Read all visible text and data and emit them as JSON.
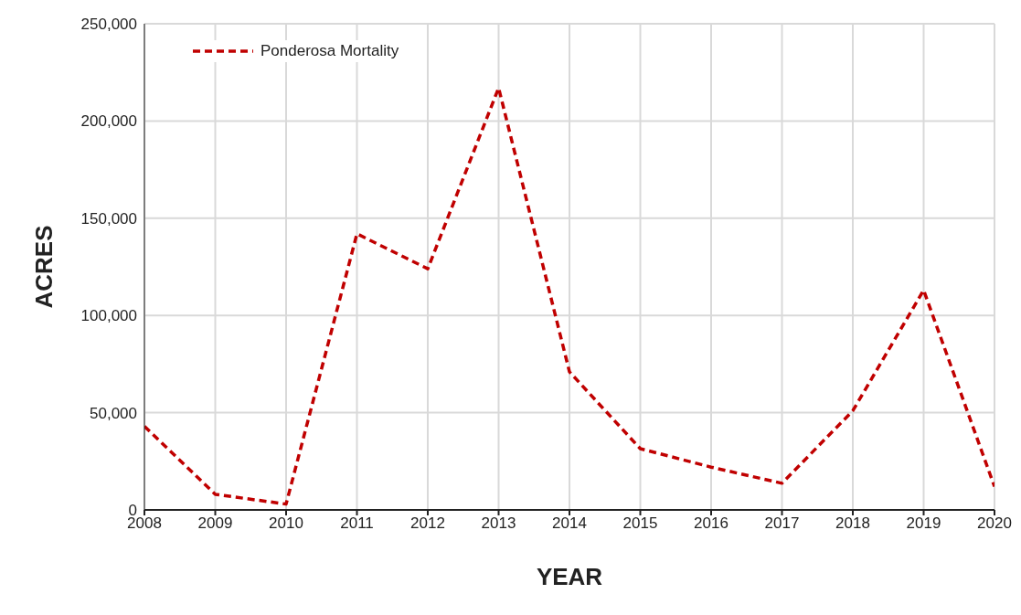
{
  "chart_data": {
    "type": "line",
    "xlabel": "YEAR",
    "ylabel": "ACRES",
    "x": [
      2008,
      2009,
      2010,
      2011,
      2012,
      2013,
      2014,
      2015,
      2016,
      2017,
      2018,
      2019,
      2020
    ],
    "series": [
      {
        "name": "Ponderosa Mortality",
        "color": "#c00000",
        "values": [
          43000,
          8000,
          3000,
          142000,
          124000,
          217000,
          71000,
          31500,
          22000,
          13700,
          51000,
          113000,
          12000
        ]
      }
    ],
    "xlim": [
      2008,
      2020
    ],
    "xticks": [
      2008,
      2009,
      2010,
      2011,
      2012,
      2013,
      2014,
      2015,
      2016,
      2017,
      2018,
      2019,
      2020
    ],
    "ylim": [
      0,
      250000
    ],
    "yticks": [
      0,
      {
        "value": 50000,
        "label": "50,000"
      },
      {
        "value": 100000,
        "label": "100,000"
      },
      {
        "value": 150000,
        "label": "150,000"
      },
      {
        "value": 200000,
        "label": "200,000"
      },
      {
        "value": 250000,
        "label": "250,000"
      }
    ],
    "grid": true,
    "legend": "top left",
    "marker": "none",
    "line_style": "dashed"
  }
}
